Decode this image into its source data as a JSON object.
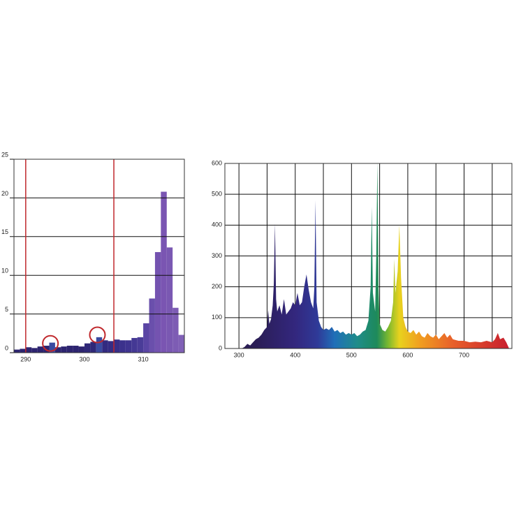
{
  "chart_data": [
    {
      "type": "histogram",
      "bins": [
        288,
        289,
        290,
        291,
        292,
        293,
        294,
        295,
        296,
        297,
        298,
        299,
        300,
        301,
        302,
        303,
        304,
        305,
        306,
        307,
        308,
        309,
        310,
        311,
        312,
        313,
        314,
        315,
        316,
        317
      ],
      "values": [
        0.4,
        0.5,
        0.7,
        0.6,
        0.8,
        0.9,
        1.3,
        0.7,
        0.8,
        0.9,
        0.9,
        0.8,
        1.2,
        1.4,
        2.0,
        1.6,
        1.5,
        1.7,
        1.6,
        1.6,
        1.9,
        2.0,
        3.8,
        7.0,
        13.0,
        20.8,
        13.6,
        5.8,
        2.3
      ],
      "colors": [
        "#2d2470",
        "#2d2470",
        "#2d2470",
        "#2d2470",
        "#2d2470",
        "#2d2470",
        "#3a4aa0",
        "#2d2470",
        "#2d2470",
        "#2d2470",
        "#2d2470",
        "#2d2470",
        "#2f2878",
        "#2f2878",
        "#3a4aa0",
        "#332a80",
        "#352c84",
        "#382e88",
        "#3b318c",
        "#3f3490",
        "#443894",
        "#4a3c98",
        "#5a45a4",
        "#6a4fac",
        "#7453b0",
        "#7a55b2",
        "#7a58b2",
        "#7d5cb4",
        "#8060b6"
      ],
      "xlim": [
        288,
        317
      ],
      "ylim": [
        0,
        25
      ],
      "xticks": [
        290,
        300,
        310
      ],
      "yticks": [
        0,
        5,
        10,
        15,
        20,
        25
      ],
      "markers": [
        290,
        305
      ],
      "marker_color": "#c0282c",
      "highlights": [
        {
          "x": 294.2,
          "y": 1.2
        },
        {
          "x": 302.2,
          "y": 2.3
        }
      ]
    },
    {
      "type": "area",
      "x": [
        305,
        310,
        315,
        320,
        325,
        330,
        335,
        340,
        345,
        350,
        352,
        354,
        357,
        360,
        362,
        364,
        366,
        368,
        372,
        376,
        380,
        384,
        388,
        392,
        396,
        400,
        404,
        408,
        412,
        416,
        420,
        424,
        428,
        432,
        434,
        436,
        438,
        442,
        446,
        450,
        455,
        460,
        465,
        470,
        475,
        480,
        485,
        490,
        495,
        500,
        505,
        510,
        515,
        520,
        525,
        530,
        534,
        536,
        538,
        542,
        544,
        546,
        548,
        550,
        555,
        560,
        565,
        570,
        574,
        576,
        578,
        582,
        585,
        588,
        592,
        596,
        600,
        605,
        610,
        615,
        620,
        625,
        630,
        635,
        640,
        645,
        650,
        655,
        660,
        665,
        670,
        675,
        680,
        690,
        700,
        710,
        720,
        730,
        740,
        750,
        755,
        760,
        764,
        770,
        775,
        780
      ],
      "values": [
        0,
        5,
        15,
        10,
        20,
        30,
        35,
        45,
        60,
        70,
        125,
        80,
        95,
        140,
        210,
        405,
        160,
        120,
        140,
        110,
        160,
        110,
        120,
        130,
        150,
        140,
        180,
        140,
        150,
        200,
        240,
        190,
        150,
        130,
        200,
        480,
        150,
        90,
        70,
        60,
        65,
        60,
        70,
        55,
        60,
        50,
        55,
        45,
        50,
        45,
        50,
        40,
        45,
        55,
        60,
        90,
        200,
        460,
        180,
        120,
        300,
        605,
        200,
        80,
        60,
        55,
        70,
        90,
        150,
        290,
        180,
        250,
        400,
        230,
        100,
        70,
        55,
        50,
        60,
        45,
        55,
        40,
        35,
        50,
        40,
        35,
        45,
        30,
        40,
        50,
        35,
        45,
        30,
        25,
        25,
        20,
        22,
        20,
        25,
        20,
        30,
        50,
        30,
        35,
        20,
        0
      ],
      "fill_stops": [
        [
          330,
          "#2a1d55"
        ],
        [
          400,
          "#33277e"
        ],
        [
          440,
          "#2f3a98"
        ],
        [
          470,
          "#1f6fb8"
        ],
        [
          510,
          "#1f8c8a"
        ],
        [
          545,
          "#1e8a5a"
        ],
        [
          565,
          "#7ab82f"
        ],
        [
          585,
          "#e8d21e"
        ],
        [
          620,
          "#f0a020"
        ],
        [
          680,
          "#e8602a"
        ],
        [
          780,
          "#c81e2e"
        ]
      ],
      "xlim": [
        275,
        785
      ],
      "ylim": [
        0,
        600
      ],
      "xticks": [
        300,
        400,
        500,
        600,
        700
      ],
      "yticks": [
        0,
        100,
        200,
        300,
        400,
        500,
        600
      ],
      "xgrid": [
        300,
        350,
        400,
        450,
        500,
        550,
        600,
        650,
        700,
        750
      ]
    }
  ]
}
